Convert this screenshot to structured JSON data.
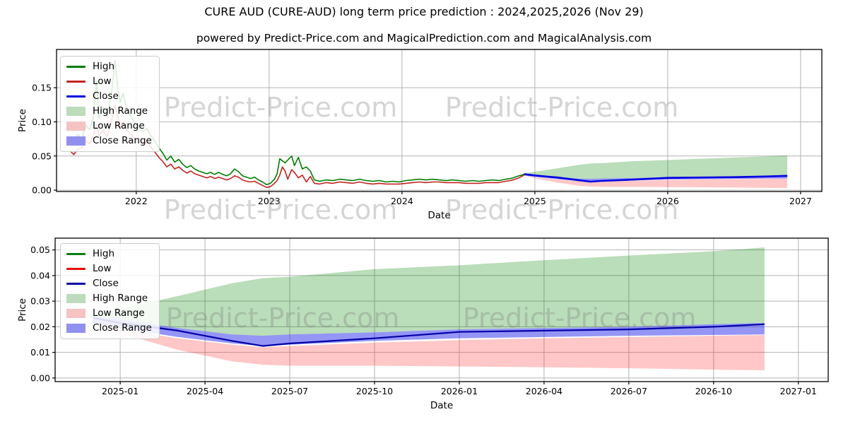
{
  "title": "CURE AUD (CURE-AUD) long term price prediction : 2024,2025,2026 (Nov 29)",
  "subtitle": "powered by Predict-Price.com and MagicalPrediction.com and MagicalAnalysis.com",
  "watermark_text": "Predict-Price.com",
  "colors": {
    "grid": "#b3b3b3",
    "axis": "#000000",
    "high_line": "#007d00",
    "low_line_top": "#c32222",
    "low_line_bottom": "#e80c0c",
    "close_line_top": "#0202e0",
    "close_line_bottom": "#0202a8",
    "high_range_fill": "rgba(0,128,0,0.27)",
    "low_range_fill": "rgba(255,40,40,0.26)",
    "close_range_fill": "rgba(20,20,235,0.45)",
    "high_range_swatch": "#bcdcbc",
    "low_range_swatch": "#f6c2c2",
    "close_range_swatch": "#9090ee"
  },
  "legend_top": {
    "items": [
      {
        "label": "High",
        "swatch": "line",
        "color": "#007d00"
      },
      {
        "label": "Low",
        "swatch": "line",
        "color": "#c32222"
      },
      {
        "label": "Close",
        "swatch": "line",
        "color": "#0202e0"
      },
      {
        "label": "High Range",
        "swatch": "patch",
        "color": "#bcdcbc"
      },
      {
        "label": "Low Range",
        "swatch": "patch",
        "color": "#f6c2c2"
      },
      {
        "label": "Close Range",
        "swatch": "patch",
        "color": "#9090ee"
      }
    ]
  },
  "legend_bottom": {
    "items": [
      {
        "label": "High",
        "swatch": "line",
        "color": "#0c7d0c"
      },
      {
        "label": "Low",
        "swatch": "line",
        "color": "#e80c0c"
      },
      {
        "label": "Close",
        "swatch": "line",
        "color": "#0202a8"
      },
      {
        "label": "High Range",
        "swatch": "patch",
        "color": "#bcdcbc"
      },
      {
        "label": "Low Range",
        "swatch": "patch",
        "color": "#f6c2c2"
      },
      {
        "label": "Close Range",
        "swatch": "patch",
        "color": "#9090ee"
      }
    ]
  },
  "chart_data": [
    {
      "name": "history-with-prediction",
      "type": "line",
      "xlabel": "Date",
      "ylabel": "Price",
      "xlim": [
        2021.4,
        2027.16
      ],
      "ylim": [
        -0.002,
        0.206
      ],
      "grid": true,
      "legend_position": "upper left",
      "xticks": {
        "values": [
          2022,
          2023,
          2024,
          2025,
          2026,
          2027
        ],
        "labels": [
          "2022",
          "2023",
          "2024",
          "2025",
          "2026",
          "2027"
        ]
      },
      "yticks": {
        "values": [
          0.0,
          0.05,
          0.1,
          0.15
        ],
        "labels": [
          "0.00",
          "0.05",
          "0.10",
          "0.15"
        ]
      },
      "prediction_overlay_from": "chart_data[1].series",
      "series": {
        "x": [
          2021.5,
          2021.53,
          2021.56,
          2021.59,
          2021.62,
          2021.65,
          2021.68,
          2021.7,
          2021.72,
          2021.75,
          2021.78,
          2021.81,
          2021.84,
          2021.86,
          2021.88,
          2021.9,
          2021.93,
          2021.96,
          2021.99,
          2022.02,
          2022.05,
          2022.08,
          2022.11,
          2022.14,
          2022.17,
          2022.2,
          2022.23,
          2022.26,
          2022.29,
          2022.32,
          2022.35,
          2022.38,
          2022.41,
          2022.44,
          2022.47,
          2022.5,
          2022.53,
          2022.56,
          2022.59,
          2022.62,
          2022.65,
          2022.68,
          2022.71,
          2022.74,
          2022.77,
          2022.8,
          2022.83,
          2022.86,
          2022.89,
          2022.92,
          2022.95,
          2022.98,
          2023.01,
          2023.04,
          2023.06,
          2023.08,
          2023.1,
          2023.12,
          2023.14,
          2023.17,
          2023.19,
          2023.22,
          2023.25,
          2023.28,
          2023.31,
          2023.34,
          2023.38,
          2023.43,
          2023.48,
          2023.53,
          2023.58,
          2023.63,
          2023.68,
          2023.73,
          2023.78,
          2023.83,
          2023.88,
          2023.93,
          2023.98,
          2024.03,
          2024.08,
          2024.13,
          2024.18,
          2024.23,
          2024.28,
          2024.33,
          2024.38,
          2024.43,
          2024.48,
          2024.53,
          2024.58,
          2024.63,
          2024.68,
          2024.73,
          2024.78,
          2024.82,
          2024.85,
          2024.88,
          2024.9,
          2024.92
        ],
        "high": [
          0.072,
          0.065,
          0.082,
          0.075,
          0.095,
          0.088,
          0.11,
          0.16,
          0.105,
          0.122,
          0.108,
          0.135,
          0.19,
          0.15,
          0.128,
          0.142,
          0.118,
          0.108,
          0.098,
          0.094,
          0.086,
          0.09,
          0.08,
          0.072,
          0.062,
          0.054,
          0.044,
          0.05,
          0.041,
          0.045,
          0.038,
          0.033,
          0.036,
          0.031,
          0.028,
          0.026,
          0.024,
          0.026,
          0.023,
          0.026,
          0.023,
          0.021,
          0.024,
          0.031,
          0.027,
          0.021,
          0.019,
          0.017,
          0.019,
          0.015,
          0.012,
          0.008,
          0.01,
          0.016,
          0.024,
          0.046,
          0.043,
          0.04,
          0.044,
          0.05,
          0.036,
          0.048,
          0.031,
          0.034,
          0.028,
          0.015,
          0.013,
          0.015,
          0.014,
          0.016,
          0.015,
          0.014,
          0.016,
          0.014,
          0.013,
          0.014,
          0.012,
          0.013,
          0.012,
          0.014,
          0.015,
          0.016,
          0.015,
          0.016,
          0.015,
          0.014,
          0.015,
          0.014,
          0.013,
          0.014,
          0.013,
          0.014,
          0.015,
          0.014,
          0.016,
          0.017,
          0.019,
          0.021,
          0.022,
          0.0235
        ],
        "low": [
          0.058,
          0.052,
          0.06,
          0.062,
          0.072,
          0.068,
          0.082,
          0.095,
          0.08,
          0.088,
          0.078,
          0.098,
          0.125,
          0.108,
          0.092,
          0.1,
          0.088,
          0.082,
          0.075,
          0.076,
          0.068,
          0.07,
          0.063,
          0.056,
          0.048,
          0.042,
          0.034,
          0.038,
          0.031,
          0.034,
          0.029,
          0.025,
          0.028,
          0.024,
          0.022,
          0.02,
          0.018,
          0.02,
          0.017,
          0.019,
          0.017,
          0.015,
          0.017,
          0.021,
          0.019,
          0.015,
          0.013,
          0.012,
          0.013,
          0.01,
          0.007,
          0.004,
          0.005,
          0.01,
          0.014,
          0.022,
          0.034,
          0.028,
          0.016,
          0.03,
          0.026,
          0.018,
          0.022,
          0.012,
          0.02,
          0.01,
          0.009,
          0.011,
          0.01,
          0.012,
          0.011,
          0.01,
          0.012,
          0.01,
          0.009,
          0.01,
          0.009,
          0.009,
          0.009,
          0.01,
          0.011,
          0.012,
          0.011,
          0.012,
          0.012,
          0.011,
          0.011,
          0.011,
          0.01,
          0.01,
          0.01,
          0.011,
          0.011,
          0.011,
          0.013,
          0.014,
          0.016,
          0.018,
          0.02,
          0.022
        ]
      }
    },
    {
      "name": "prediction-detail",
      "type": "area",
      "xlabel": "Date",
      "ylabel": "Price",
      "xlim": [
        2024.808,
        2027.088
      ],
      "ylim": [
        -0.0014,
        0.0546
      ],
      "grid": true,
      "legend_position": "upper left",
      "xticks": {
        "values": [
          2025.0,
          2025.25,
          2025.5,
          2025.75,
          2026.0,
          2026.25,
          2026.5,
          2026.75,
          2027.0
        ],
        "labels": [
          "2025-01",
          "2025-04",
          "2025-07",
          "2025-10",
          "2026-01",
          "2026-04",
          "2026-07",
          "2026-10",
          "2027-01"
        ]
      },
      "yticks": {
        "values": [
          0.0,
          0.01,
          0.02,
          0.03,
          0.04,
          0.05
        ],
        "labels": [
          "0.00",
          "0.01",
          "0.02",
          "0.03",
          "0.04",
          "0.05"
        ]
      },
      "series": {
        "x": [
          2024.92,
          2025.0,
          2025.17,
          2025.33,
          2025.42,
          2025.5,
          2025.75,
          2026.0,
          2026.25,
          2026.5,
          2026.75,
          2026.9
        ],
        "close": [
          0.0235,
          0.0215,
          0.0185,
          0.0145,
          0.0125,
          0.0135,
          0.0155,
          0.018,
          0.0185,
          0.019,
          0.02,
          0.021
        ],
        "high_range_top": [
          0.0245,
          0.027,
          0.032,
          0.037,
          0.039,
          0.0395,
          0.0425,
          0.044,
          0.046,
          0.0478,
          0.0495,
          0.051
        ],
        "close_range_top": [
          0.024,
          0.023,
          0.0195,
          0.017,
          0.0165,
          0.017,
          0.0178,
          0.019,
          0.0195,
          0.02,
          0.021,
          0.0215
        ],
        "close_range_bot": [
          0.0215,
          0.0195,
          0.016,
          0.0135,
          0.0125,
          0.013,
          0.0145,
          0.0155,
          0.016,
          0.0165,
          0.0168,
          0.017
        ],
        "low_range_top": [
          0.0225,
          0.019,
          0.0155,
          0.013,
          0.012,
          0.0125,
          0.0138,
          0.0148,
          0.0155,
          0.016,
          0.0165,
          0.0168
        ],
        "low_range_bot": [
          0.022,
          0.0175,
          0.011,
          0.0065,
          0.0052,
          0.0048,
          0.0048,
          0.0045,
          0.0042,
          0.0038,
          0.0033,
          0.003
        ]
      }
    }
  ]
}
